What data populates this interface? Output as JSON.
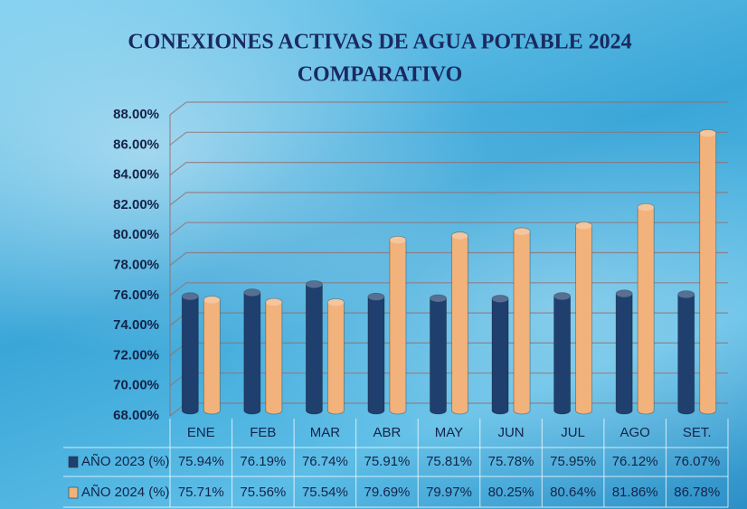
{
  "chart_data": {
    "type": "bar",
    "title": "CONEXIONES ACTIVAS DE AGUA POTABLE 2024",
    "subtitle": "COMPARATIVO",
    "categories": [
      "ENE",
      "FEB",
      "MAR",
      "ABR",
      "MAY",
      "JUN",
      "JUL",
      "AGO",
      "SET."
    ],
    "series": [
      {
        "name": "AÑO 2023 (%)",
        "color": "#1f3f6e",
        "values": [
          75.94,
          76.19,
          76.74,
          75.91,
          75.81,
          75.78,
          75.95,
          76.12,
          76.07
        ],
        "value_labels": [
          "75.94%",
          "76.19%",
          "76.74%",
          "75.91%",
          "75.81%",
          "75.78%",
          "75.95%",
          "76.12%",
          "76.07%"
        ]
      },
      {
        "name": "AÑO 2024 (%)",
        "color": "#f2b27c",
        "values": [
          75.71,
          75.56,
          75.54,
          79.69,
          79.97,
          80.25,
          80.64,
          81.86,
          86.78
        ],
        "value_labels": [
          "75.71%",
          "75.56%",
          "75.54%",
          "79.69%",
          "79.97%",
          "80.25%",
          "80.64%",
          "81.86%",
          "86.78%"
        ]
      }
    ],
    "ylim": [
      68,
      88
    ],
    "yticks": [
      {
        "value": 68,
        "label": "68.00%"
      },
      {
        "value": 70,
        "label": "70.00%"
      },
      {
        "value": 72,
        "label": "72.00%"
      },
      {
        "value": 74,
        "label": "74.00%"
      },
      {
        "value": 76,
        "label": "76.00%"
      },
      {
        "value": 78,
        "label": "78.00%"
      },
      {
        "value": 80,
        "label": "80.00%"
      },
      {
        "value": 82,
        "label": "82.00%"
      },
      {
        "value": 84,
        "label": "84.00%"
      },
      {
        "value": 86,
        "label": "86.00%"
      },
      {
        "value": 88,
        "label": "88.00%"
      }
    ],
    "grid": true
  }
}
